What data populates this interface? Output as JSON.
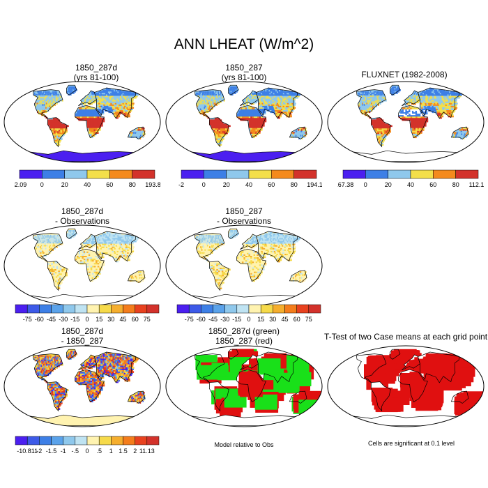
{
  "title": "ANN LHEAT (W/m^2)",
  "panels": [
    {
      "title1": "1850_287d",
      "title2": "(yrs 81-100)",
      "kind": "abs",
      "seed": 1
    },
    {
      "title1": "1850_287",
      "title2": "(yrs 81-100)",
      "kind": "abs",
      "seed": 2
    },
    {
      "title1": "FLUXNET (1982-2008)",
      "title2": "",
      "kind": "obs",
      "seed": 3
    },
    {
      "title1": "1850_287d",
      "title2": "- Observations",
      "kind": "bias",
      "seed": 4
    },
    {
      "title1": "1850_287",
      "title2": "- Observations",
      "kind": "bias",
      "seed": 5
    },
    {
      "title1": "1850_287d",
      "title2": "- 1850_287",
      "kind": "diff",
      "seed": 6
    },
    {
      "title1": "1850_287d (green)",
      "title2": "1850_287 (red)",
      "kind": "rg",
      "seed": 7
    },
    {
      "title1": "T-Test of two Case means at each grid point",
      "title2": "",
      "kind": "ttest",
      "seed": 8
    }
  ],
  "colorbars": [
    {
      "labels": [
        "-2.09",
        "0",
        "20",
        "40",
        "60",
        "80",
        "193.85"
      ],
      "colors": [
        "#4b1ff0",
        "#3d7fe6",
        "#8fc8ec",
        "#f3df4a",
        "#f48a1d",
        "#d3322b"
      ]
    },
    {
      "labels": [
        "-2",
        "0",
        "20",
        "40",
        "60",
        "80",
        "194.13"
      ],
      "colors": [
        "#4b1ff0",
        "#3d7fe6",
        "#8fc8ec",
        "#f3df4a",
        "#f48a1d",
        "#d3322b"
      ]
    },
    {
      "labels": [
        "-167.38",
        "0",
        "20",
        "40",
        "60",
        "80",
        "112.13"
      ],
      "colors": [
        "#4b1ff0",
        "#3d7fe6",
        "#8fc8ec",
        "#f3df4a",
        "#f48a1d",
        "#d3322b"
      ]
    },
    {
      "labels": [
        "-75",
        "-60",
        "-45",
        "-30",
        "-15",
        "0",
        "15",
        "30",
        "45",
        "60",
        "75"
      ],
      "colors": [
        "#4b1ff0",
        "#3d5ae8",
        "#3d7fe6",
        "#5aa2ea",
        "#8fc8ec",
        "#bfe3f2",
        "#fff3b0",
        "#f6da4a",
        "#f5ae2e",
        "#f47d1c",
        "#e8421f",
        "#d3322b"
      ]
    },
    {
      "labels": [
        "-75",
        "-60",
        "-45",
        "-30",
        "-15",
        "0",
        "15",
        "30",
        "45",
        "60",
        "75"
      ],
      "colors": [
        "#4b1ff0",
        "#3d5ae8",
        "#3d7fe6",
        "#5aa2ea",
        "#8fc8ec",
        "#bfe3f2",
        "#fff3b0",
        "#f6da4a",
        "#f5ae2e",
        "#f47d1c",
        "#e8421f",
        "#d3322b"
      ]
    },
    {
      "labels": [
        "-10.811",
        "-2",
        "-1.5",
        "-1",
        "-.5",
        "0",
        ".5",
        "1",
        "1.5",
        "2",
        "11.13"
      ],
      "colors": [
        "#4b1ff0",
        "#3d5ae8",
        "#3d7fe6",
        "#5aa2ea",
        "#8fc8ec",
        "#bfe3f2",
        "#fff3b0",
        "#f6da4a",
        "#f5ae2e",
        "#f47d1c",
        "#e8421f",
        "#d3322b"
      ]
    }
  ],
  "notes": {
    "model_relative": "Model relative to Obs",
    "significance": "Cells are significant at 0.1 level"
  },
  "chart_data": {
    "type": "heatmap",
    "title": "ANN LHEAT (W/m^2)",
    "variable": "Annual latent heat flux",
    "units": "W/m^2",
    "projection": "Robinson (global)",
    "panels": [
      {
        "name": "1850_287d (yrs 81-100)",
        "min": -2.09,
        "max": 193.85,
        "levels": [
          0,
          20,
          40,
          60,
          80
        ]
      },
      {
        "name": "1850_287 (yrs 81-100)",
        "min": -2,
        "max": 194.13,
        "levels": [
          0,
          20,
          40,
          60,
          80
        ]
      },
      {
        "name": "FLUXNET (1982-2008)",
        "min": -167.38,
        "max": 112.13,
        "levels": [
          0,
          20,
          40,
          60,
          80
        ]
      },
      {
        "name": "1850_287d - Observations",
        "levels": [
          -75,
          -60,
          -45,
          -30,
          -15,
          0,
          15,
          30,
          45,
          60,
          75
        ]
      },
      {
        "name": "1850_287 - Observations",
        "levels": [
          -75,
          -60,
          -45,
          -30,
          -15,
          0,
          15,
          30,
          45,
          60,
          75
        ]
      },
      {
        "name": "1850_287d - 1850_287",
        "min": -10.811,
        "max": 11.13,
        "levels": [
          -2,
          -1.5,
          -1,
          -0.5,
          0,
          0.5,
          1,
          1.5,
          2
        ]
      },
      {
        "name": "1850_287d (green) 1850_287 (red)",
        "colors": {
          "1850_287d": "green",
          "1850_287": "red"
        }
      },
      {
        "name": "T-Test of two Case means at each grid point",
        "significance_level": 0.1
      }
    ]
  }
}
